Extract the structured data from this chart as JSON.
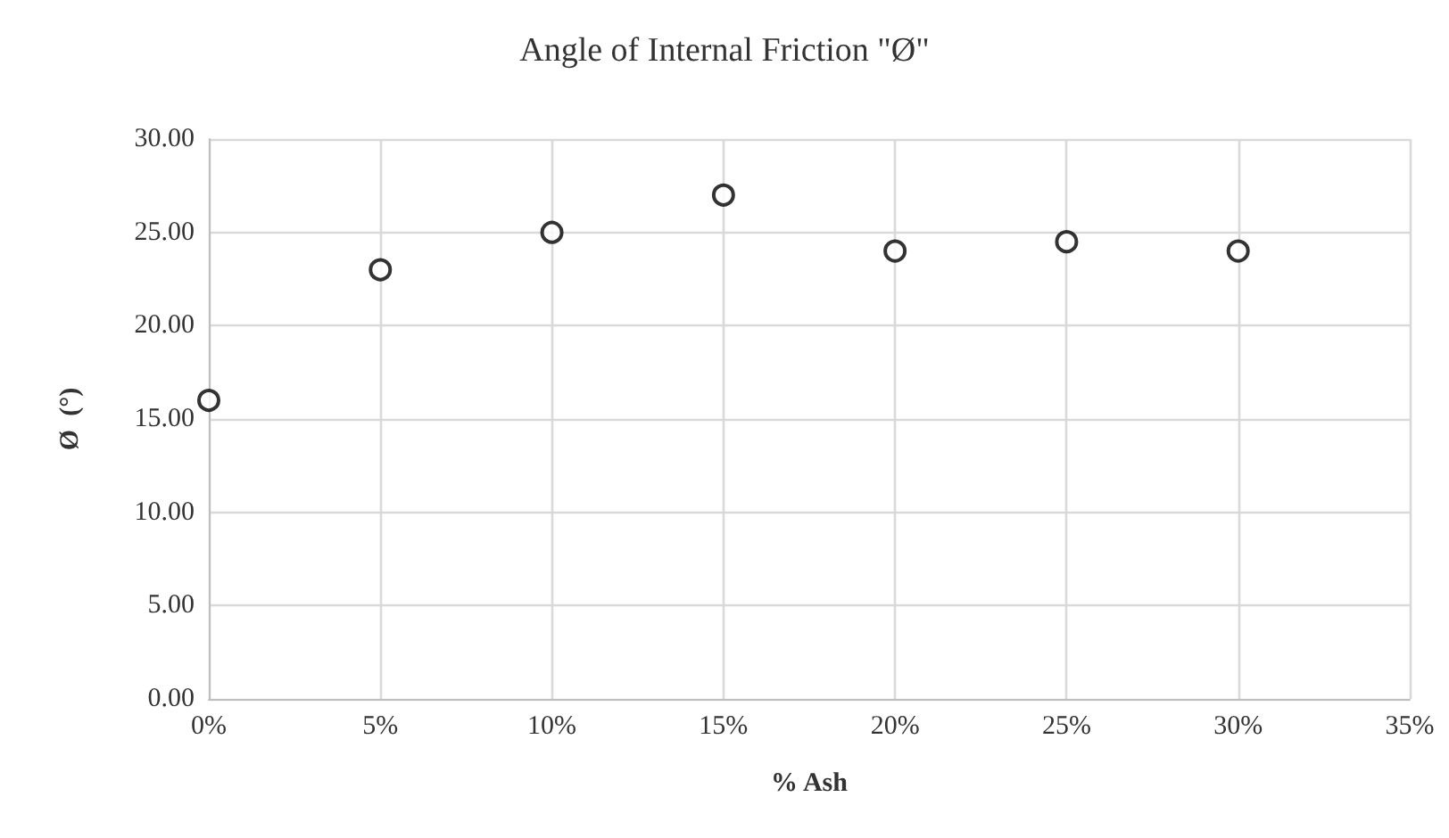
{
  "chart_data": {
    "type": "scatter",
    "title": "Angle of Internal Friction \"Ø\"",
    "xlabel": "% Ash",
    "ylabel": "Ø  (°)",
    "x": [
      0,
      5,
      10,
      15,
      20,
      25,
      30
    ],
    "series": [
      {
        "color": "#000000",
        "values": [
          16,
          23,
          25,
          27,
          24,
          24.5,
          24
        ]
      }
    ],
    "xlim": [
      0,
      35
    ],
    "xticks": [
      {
        "value": 0,
        "label": "0%"
      },
      {
        "value": 5,
        "label": "5%"
      },
      {
        "value": 10,
        "label": "10%"
      },
      {
        "value": 15,
        "label": "15%"
      },
      {
        "value": 20,
        "label": "20%"
      },
      {
        "value": 25,
        "label": "25%"
      },
      {
        "value": 30,
        "label": "30%"
      },
      {
        "value": 35,
        "label": "35%"
      }
    ],
    "ylim": [
      0,
      30
    ],
    "yticks": [
      {
        "value": 0,
        "label": "0.00"
      },
      {
        "value": 5,
        "label": "5.00"
      },
      {
        "value": 10,
        "label": "10.00"
      },
      {
        "value": 15,
        "label": "15.00"
      },
      {
        "value": 20,
        "label": "20.00"
      },
      {
        "value": 25,
        "label": "25.00"
      },
      {
        "value": 30,
        "label": "30.00"
      }
    ],
    "grid": true,
    "marker": "circle"
  }
}
